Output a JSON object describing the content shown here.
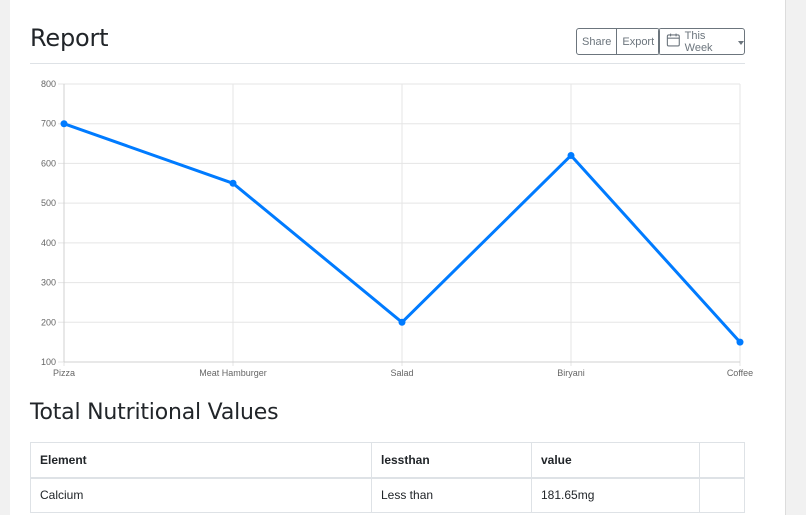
{
  "header": {
    "title": "Report",
    "share_label": "Share",
    "export_label": "Export",
    "range_label": "This Week",
    "range_icon": "calendar-icon"
  },
  "chart_data": {
    "type": "line",
    "categories": [
      "Pizza",
      "Meat Hamburger",
      "Salad",
      "Biryani",
      "Coffee"
    ],
    "values": [
      700,
      550,
      200,
      620,
      150
    ],
    "ylim": [
      100,
      800
    ],
    "yticks": [
      "100",
      "200",
      "300",
      "400",
      "500",
      "600",
      "700",
      "800"
    ],
    "grid": true,
    "color": "#007bff",
    "title": "",
    "xlabel": "",
    "ylabel": ""
  },
  "nutrition": {
    "title": "Total Nutritional Values",
    "headers": [
      "Element",
      "lessthan",
      "value",
      ""
    ],
    "rows": [
      [
        "Calcium",
        "Less than",
        "181.65mg",
        ""
      ]
    ]
  }
}
